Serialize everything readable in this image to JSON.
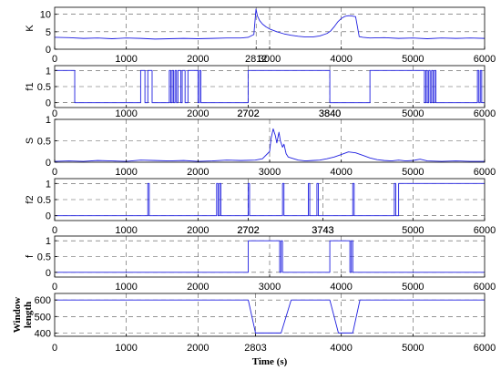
{
  "chart_data": [
    {
      "type": "line",
      "ylabel": "K",
      "ylim": [
        0,
        12
      ],
      "yticks": [
        0,
        5,
        10
      ],
      "xlim": [
        0,
        6000
      ],
      "xtick_labels": [
        "0",
        "1000",
        "2000",
        "2812",
        "3000",
        "4000",
        "5000",
        "6000"
      ],
      "xtick_values": [
        0,
        1000,
        2000,
        2812,
        3000,
        4000,
        5000,
        6000
      ],
      "grid": true,
      "series": [
        {
          "x": [
            0,
            200,
            400,
            600,
            800,
            1000,
            1200,
            1400,
            1600,
            1800,
            2000,
            2200,
            2400,
            2600,
            2700,
            2780,
            2810,
            2830,
            2860,
            2900,
            2950,
            3000,
            3100,
            3200,
            3300,
            3400,
            3500,
            3600,
            3700,
            3800,
            3850,
            3900,
            3950,
            4000,
            4050,
            4100,
            4150,
            4200,
            4250,
            4300,
            4400,
            4600,
            4800,
            5000,
            5200,
            5400,
            5600,
            5800,
            6000
          ],
          "y": [
            3.4,
            3.3,
            3.1,
            3.2,
            3.0,
            3.2,
            3.1,
            2.9,
            3.0,
            3.1,
            3.0,
            3.1,
            3.2,
            3.2,
            3.4,
            4.2,
            11.5,
            9.5,
            8.2,
            7.2,
            6.4,
            5.8,
            5.0,
            4.4,
            4.0,
            3.7,
            3.5,
            3.5,
            3.8,
            4.5,
            5.2,
            6.4,
            7.8,
            8.8,
            9.4,
            9.6,
            9.5,
            9.3,
            3.6,
            3.4,
            3.2,
            3.3,
            3.1,
            3.2,
            3.0,
            3.2,
            3.1,
            3.2,
            3.1
          ]
        }
      ]
    },
    {
      "type": "line",
      "ylabel": "f1",
      "ylim": [
        -0.15,
        1.15
      ],
      "yticks": [
        0,
        0.5,
        1
      ],
      "xlim": [
        0,
        6000
      ],
      "xtick_labels": [
        "0",
        "1000",
        "2000",
        "2702",
        "3840",
        "5000",
        "6000"
      ],
      "xtick_values": [
        0,
        1000,
        2000,
        2702,
        3840,
        5000,
        6000
      ],
      "grid": true,
      "series": [
        {
          "x": [
            0,
            280,
            280,
            1200,
            1200,
            1260,
            1260,
            1300,
            1300,
            1360,
            1360,
            1600,
            1600,
            1620,
            1620,
            1640,
            1640,
            1660,
            1660,
            1680,
            1680,
            1700,
            1700,
            1720,
            1720,
            1760,
            1760,
            1780,
            1780,
            1820,
            1820,
            1860,
            1860,
            2000,
            2000,
            2020,
            2020,
            2040,
            2040,
            2700,
            2700,
            3840,
            3840,
            4400,
            4400,
            5160,
            5160,
            5180,
            5180,
            5200,
            5200,
            5220,
            5220,
            5240,
            5240,
            5260,
            5260,
            5280,
            5280,
            5300,
            5300,
            5320,
            5320,
            5900,
            5900,
            5920,
            5920,
            5940,
            5940,
            5960,
            5960,
            6000
          ],
          "y": [
            1,
            1,
            0,
            0,
            1,
            1,
            0,
            0,
            1,
            1,
            0,
            0,
            1,
            1,
            0,
            0,
            1,
            1,
            0,
            0,
            1,
            1,
            0,
            0,
            1,
            1,
            0,
            0,
            1,
            1,
            0,
            0,
            1,
            1,
            0,
            0,
            1,
            1,
            0,
            0,
            1,
            1,
            0,
            0,
            1,
            1,
            0,
            0,
            1,
            1,
            0,
            0,
            1,
            1,
            0,
            0,
            1,
            1,
            0,
            0,
            1,
            1,
            0,
            0,
            1,
            1,
            0,
            0,
            1,
            1,
            0,
            0
          ]
        }
      ]
    },
    {
      "type": "line",
      "ylabel": "S",
      "ylim": [
        0,
        1
      ],
      "yticks": [
        0,
        0.5,
        1
      ],
      "xlim": [
        0,
        6000
      ],
      "xtick_labels": [
        "0",
        "1000",
        "2000",
        "3000",
        "4000",
        "5000",
        "6000"
      ],
      "xtick_values": [
        0,
        1000,
        2000,
        3000,
        4000,
        5000,
        6000
      ],
      "grid": true,
      "series": [
        {
          "x": [
            0,
            200,
            400,
            600,
            800,
            1000,
            1200,
            1400,
            1600,
            1800,
            2000,
            2200,
            2400,
            2600,
            2800,
            2900,
            3000,
            3020,
            3050,
            3080,
            3100,
            3130,
            3150,
            3180,
            3200,
            3230,
            3260,
            3300,
            3400,
            3500,
            3600,
            3700,
            3800,
            3900,
            4000,
            4100,
            4200,
            4300,
            4400,
            4500,
            4600,
            4700,
            4800,
            4900,
            5000,
            5100,
            5200,
            5400,
            5600,
            5800,
            6000
          ],
          "y": [
            0.02,
            0.03,
            0.02,
            0.04,
            0.03,
            0.02,
            0.05,
            0.04,
            0.03,
            0.04,
            0.02,
            0.03,
            0.05,
            0.04,
            0.05,
            0.08,
            0.25,
            0.55,
            0.78,
            0.62,
            0.45,
            0.7,
            0.5,
            0.35,
            0.42,
            0.2,
            0.12,
            0.1,
            0.05,
            0.03,
            0.04,
            0.05,
            0.08,
            0.12,
            0.18,
            0.24,
            0.22,
            0.16,
            0.1,
            0.06,
            0.04,
            0.03,
            0.05,
            0.03,
            0.04,
            0.07,
            0.03,
            0.02,
            0.03,
            0.02,
            0.02
          ]
        }
      ]
    },
    {
      "type": "line",
      "ylabel": "f2",
      "ylim": [
        -0.15,
        1.15
      ],
      "yticks": [
        0,
        0.5,
        1
      ],
      "xlim": [
        0,
        6000
      ],
      "xtick_labels": [
        "0",
        "1000",
        "2000",
        "2702",
        "3743",
        "5000",
        "6000"
      ],
      "xtick_values": [
        0,
        1000,
        2000,
        2702,
        3743,
        5000,
        6000
      ],
      "grid": true,
      "series": [
        {
          "x": [
            0,
            1300,
            1300,
            1320,
            1320,
            2260,
            2260,
            2280,
            2280,
            2300,
            2300,
            2320,
            2320,
            2700,
            2700,
            2720,
            2720,
            3180,
            3180,
            3200,
            3200,
            3540,
            3540,
            3560,
            3560,
            3660,
            3660,
            3680,
            3680,
            4160,
            4160,
            4180,
            4180,
            4740,
            4740,
            4760,
            4760,
            4800,
            4800,
            6000
          ],
          "y": [
            0,
            0,
            1,
            1,
            0,
            0,
            1,
            1,
            0,
            0,
            1,
            1,
            0,
            0,
            1,
            1,
            0,
            0,
            1,
            1,
            0,
            0,
            1,
            1,
            0,
            0,
            1,
            1,
            0,
            0,
            1,
            1,
            0,
            0,
            1,
            1,
            0,
            0,
            1,
            1
          ]
        }
      ]
    },
    {
      "type": "line",
      "ylabel": "f",
      "ylim": [
        -0.15,
        1.15
      ],
      "yticks": [
        0,
        0.5,
        1
      ],
      "xlim": [
        0,
        6000
      ],
      "xtick_labels": [
        "0",
        "1000",
        "2000",
        "3000",
        "4000",
        "5000",
        "6000"
      ],
      "xtick_values": [
        0,
        1000,
        2000,
        3000,
        4000,
        5000,
        6000
      ],
      "grid": true,
      "series": [
        {
          "x": [
            0,
            2702,
            2702,
            3140,
            3140,
            3160,
            3160,
            3180,
            3180,
            3200,
            3200,
            3840,
            3840,
            4120,
            4120,
            4140,
            4140,
            4160,
            4160,
            4170,
            4170,
            6000
          ],
          "y": [
            0,
            0,
            1,
            1,
            0,
            0,
            1,
            1,
            0,
            0,
            0,
            0,
            1,
            1,
            0,
            0,
            1,
            1,
            0,
            0,
            0,
            0
          ]
        }
      ]
    },
    {
      "type": "line",
      "ylabel": "Window length",
      "ylim": [
        380,
        640
      ],
      "yticks": [
        400,
        500,
        600
      ],
      "xlim": [
        0,
        6000
      ],
      "xtick_labels": [
        "0",
        "1000",
        "2000",
        "2803",
        "4000",
        "5000",
        "6000"
      ],
      "xtick_values": [
        0,
        1000,
        2000,
        2803,
        4000,
        5000,
        6000
      ],
      "xlabel": "Time (s)",
      "grid": true,
      "series": [
        {
          "x": [
            0,
            2702,
            2803,
            3160,
            3300,
            3840,
            3960,
            4160,
            4260,
            6000
          ],
          "y": [
            600,
            600,
            400,
            400,
            600,
            600,
            400,
            400,
            600,
            600
          ]
        }
      ]
    }
  ],
  "annotations": [
    {
      "text": "2702",
      "panel": 1,
      "x": 2702
    },
    {
      "text": "3840",
      "panel": 1,
      "x": 3840
    },
    {
      "text": "2702",
      "panel": 3,
      "x": 2702
    },
    {
      "text": "3743",
      "panel": 3,
      "x": 3743
    }
  ],
  "colors": {
    "line": "#1f1fe0",
    "grid": "#555555",
    "axes": "#000000"
  }
}
